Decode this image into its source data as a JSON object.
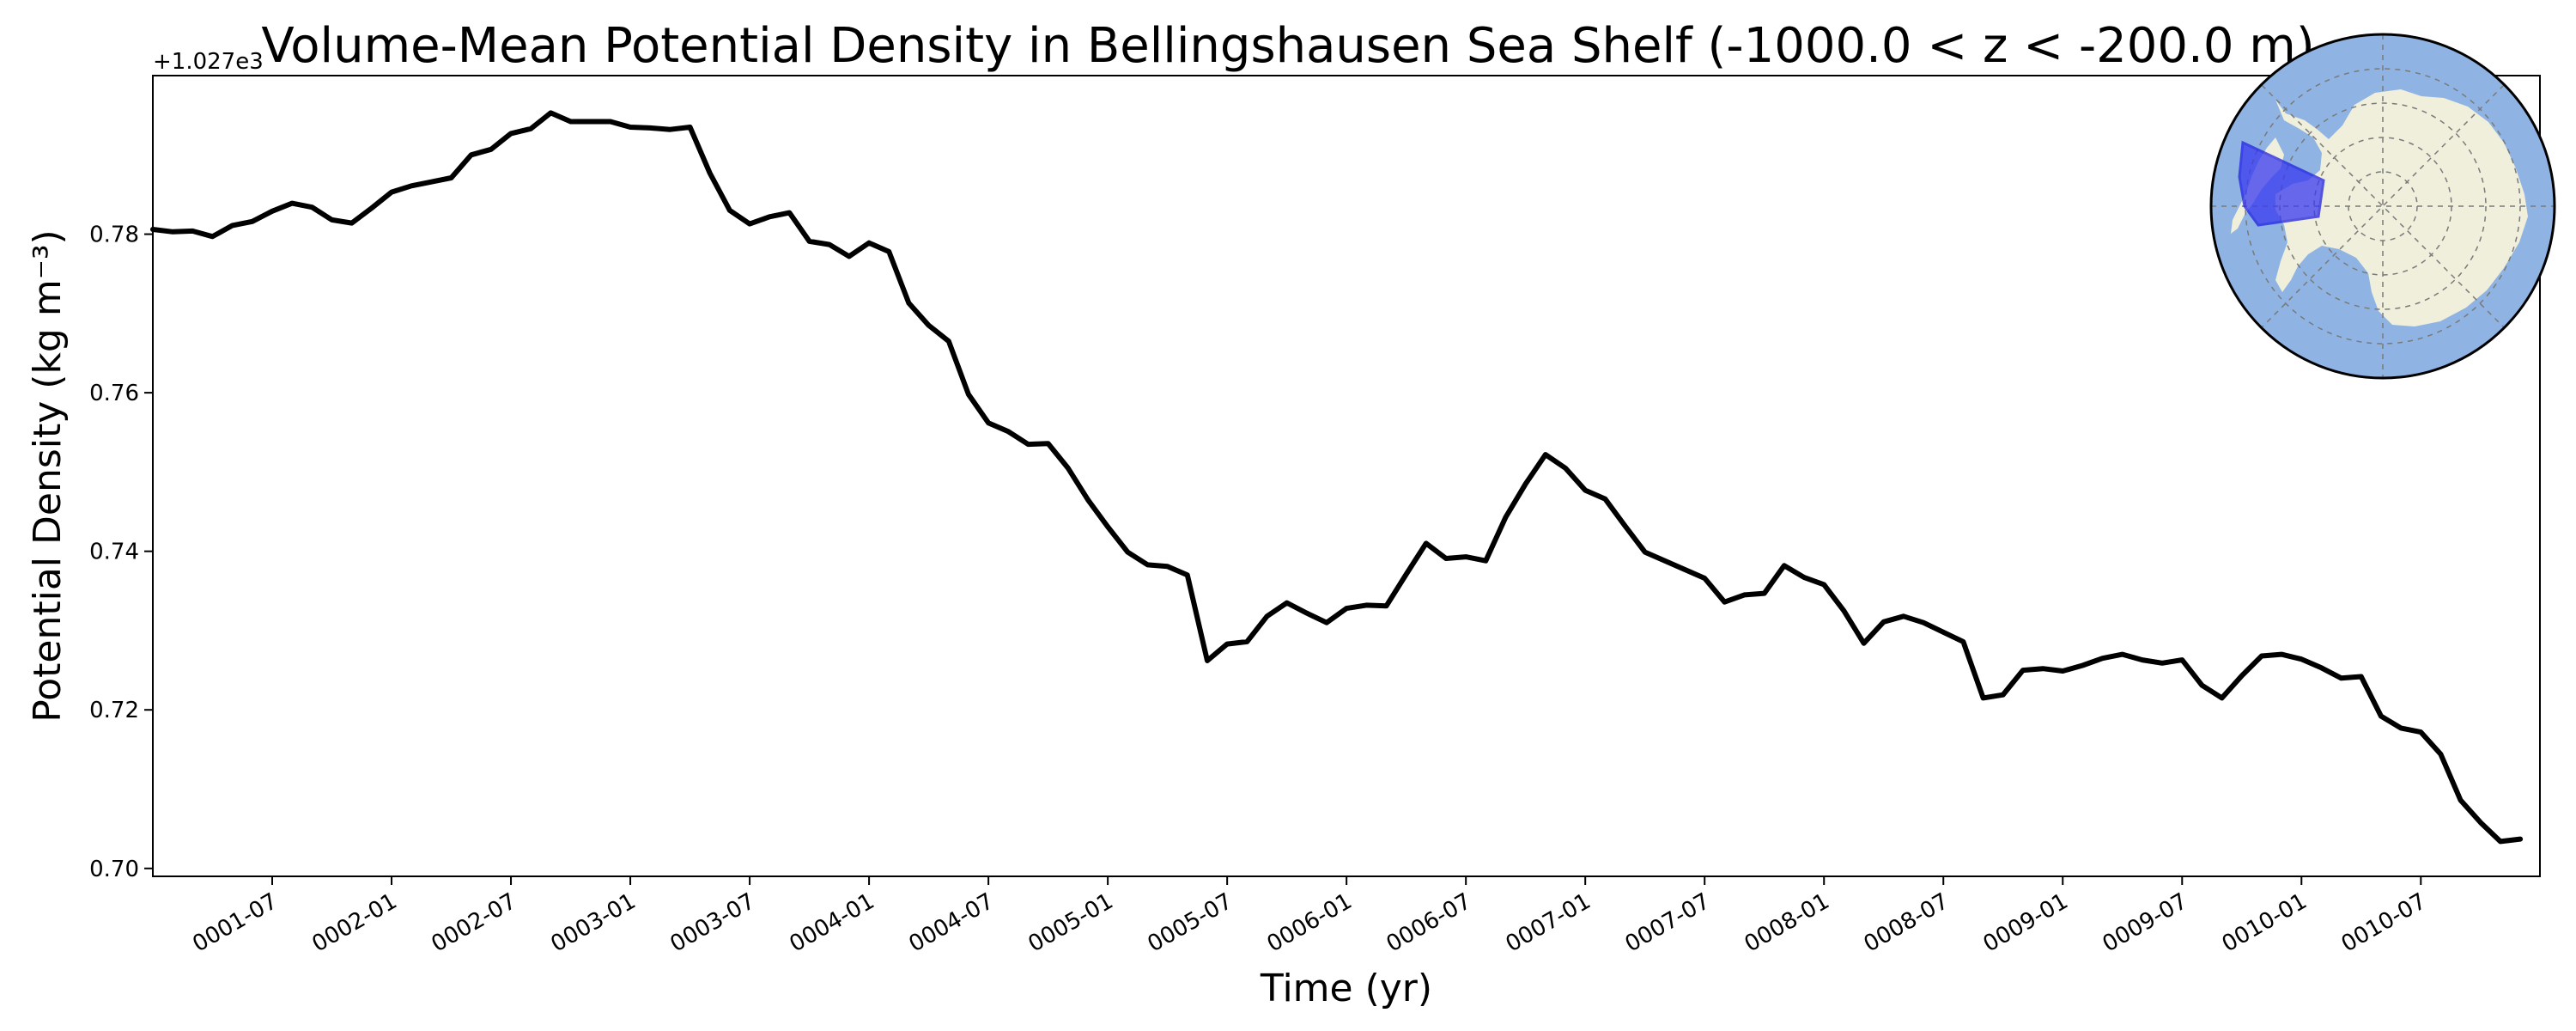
{
  "chart_data": {
    "type": "line",
    "title": "Volume-Mean Potential Density in Bellingshausen Sea Shelf (-1000.0 < z < -200.0 m)",
    "xlabel": "Time (yr)",
    "ylabel": "Potential Density (kg m⁻³)",
    "y_offset_label": "+1.027e3",
    "ylim": [
      0.699,
      0.8
    ],
    "yticks": [
      0.7,
      0.72,
      0.74,
      0.76,
      0.78
    ],
    "ytick_labels": [
      "0.70",
      "0.72",
      "0.74",
      "0.76",
      "0.78"
    ],
    "xlim": [
      "0001-01-01",
      "0010-12-31"
    ],
    "xticks": [
      "0001-07-01",
      "0002-01-01",
      "0002-07-01",
      "0003-01-01",
      "0003-07-01",
      "0004-01-01",
      "0004-07-01",
      "0005-01-01",
      "0005-07-01",
      "0006-01-01",
      "0006-07-01",
      "0007-01-01",
      "0007-07-01",
      "0008-01-01",
      "0008-07-01",
      "0009-01-01",
      "0009-07-01",
      "0010-01-01",
      "0010-07-01"
    ],
    "xtick_labels": [
      "0001-07",
      "0002-01",
      "0002-07",
      "0003-01",
      "0003-07",
      "0004-01",
      "0004-07",
      "0005-01",
      "0005-07",
      "0006-01",
      "0006-07",
      "0007-01",
      "0007-07",
      "0008-01",
      "0008-07",
      "0009-01",
      "0009-07",
      "0010-01",
      "0010-07"
    ],
    "grid": false,
    "line_color": "#000000",
    "series": [
      {
        "x": [
          "0001-01",
          "0001-02",
          "0001-03",
          "0001-04",
          "0001-05",
          "0001-06",
          "0001-07",
          "0001-08",
          "0001-09",
          "0001-10",
          "0001-11",
          "0001-12",
          "0002-01",
          "0002-02",
          "0002-03",
          "0002-04",
          "0002-05",
          "0002-06",
          "0002-07",
          "0002-08",
          "0002-09",
          "0002-10",
          "0002-11",
          "0002-12",
          "0003-01",
          "0003-02",
          "0003-03",
          "0003-04",
          "0003-05",
          "0003-06",
          "0003-07",
          "0003-08",
          "0003-09",
          "0003-10",
          "0003-11",
          "0003-12",
          "0004-01",
          "0004-02",
          "0004-03",
          "0004-04",
          "0004-05",
          "0004-06",
          "0004-07",
          "0004-08",
          "0004-09",
          "0004-10",
          "0004-11",
          "0004-12",
          "0005-01",
          "0005-02",
          "0005-03",
          "0005-04",
          "0005-05",
          "0005-06",
          "0005-07",
          "0005-08",
          "0005-09",
          "0005-10",
          "0005-11",
          "0005-12",
          "0006-01",
          "0006-02",
          "0006-03",
          "0006-04",
          "0006-05",
          "0006-06",
          "0006-07",
          "0006-08",
          "0006-09",
          "0006-10",
          "0006-11",
          "0006-12",
          "0007-01",
          "0007-02",
          "0007-03",
          "0007-04",
          "0007-05",
          "0007-06",
          "0007-07",
          "0007-08",
          "0007-09",
          "0007-10",
          "0007-11",
          "0007-12",
          "0008-01",
          "0008-02",
          "0008-03",
          "0008-04",
          "0008-05",
          "0008-06",
          "0008-07",
          "0008-08",
          "0008-09",
          "0008-10",
          "0008-11",
          "0008-12",
          "0009-01",
          "0009-02",
          "0009-03",
          "0009-04",
          "0009-05",
          "0009-06",
          "0009-07",
          "0009-08",
          "0009-09",
          "0009-10",
          "0009-11",
          "0009-12",
          "0010-01",
          "0010-02",
          "0010-03",
          "0010-04",
          "0010-05",
          "0010-06",
          "0010-07",
          "0010-08",
          "0010-09",
          "0010-10",
          "0010-11",
          "0010-12"
        ],
        "values": [
          0.7806,
          0.7803,
          0.7804,
          0.7797,
          0.7811,
          0.7816,
          0.7829,
          0.7839,
          0.7834,
          0.7818,
          0.7814,
          0.7833,
          0.7853,
          0.7861,
          0.7866,
          0.7871,
          0.79,
          0.7907,
          0.7927,
          0.7933,
          0.7953,
          0.7942,
          0.7942,
          0.7942,
          0.7935,
          0.7934,
          0.7932,
          0.7935,
          0.7877,
          0.783,
          0.7813,
          0.7822,
          0.7827,
          0.7791,
          0.7787,
          0.7772,
          0.7789,
          0.7778,
          0.7713,
          0.7685,
          0.7665,
          0.7598,
          0.7562,
          0.7551,
          0.7535,
          0.7536,
          0.7505,
          0.7465,
          0.7431,
          0.7399,
          0.7383,
          0.7381,
          0.737,
          0.7262,
          0.7283,
          0.7286,
          0.7318,
          0.7335,
          0.7322,
          0.731,
          0.7328,
          0.7332,
          0.7331,
          0.7371,
          0.741,
          0.7391,
          0.7393,
          0.7388,
          0.7443,
          0.7485,
          0.7522,
          0.7505,
          0.7477,
          0.7466,
          0.7432,
          0.7399,
          0.7388,
          0.7377,
          0.7366,
          0.7336,
          0.7345,
          0.7347,
          0.7382,
          0.7367,
          0.7358,
          0.7325,
          0.7284,
          0.7311,
          0.7318,
          0.731,
          0.7298,
          0.7286,
          0.7215,
          0.7219,
          0.725,
          0.7252,
          0.7249,
          0.7256,
          0.7265,
          0.727,
          0.7263,
          0.7259,
          0.7263,
          0.7231,
          0.7215,
          0.7243,
          0.7268,
          0.727,
          0.7264,
          0.7253,
          0.724,
          0.7242,
          0.7192,
          0.7177,
          0.7172,
          0.7144,
          0.7086,
          0.7058,
          0.7034,
          0.7037
        ]
      }
    ]
  },
  "inset_map": {
    "ocean_color": "#8fb3e3",
    "land_color": "#efefdc",
    "region_color": "#3a3af0",
    "region_edge_color": "#2020e0"
  }
}
